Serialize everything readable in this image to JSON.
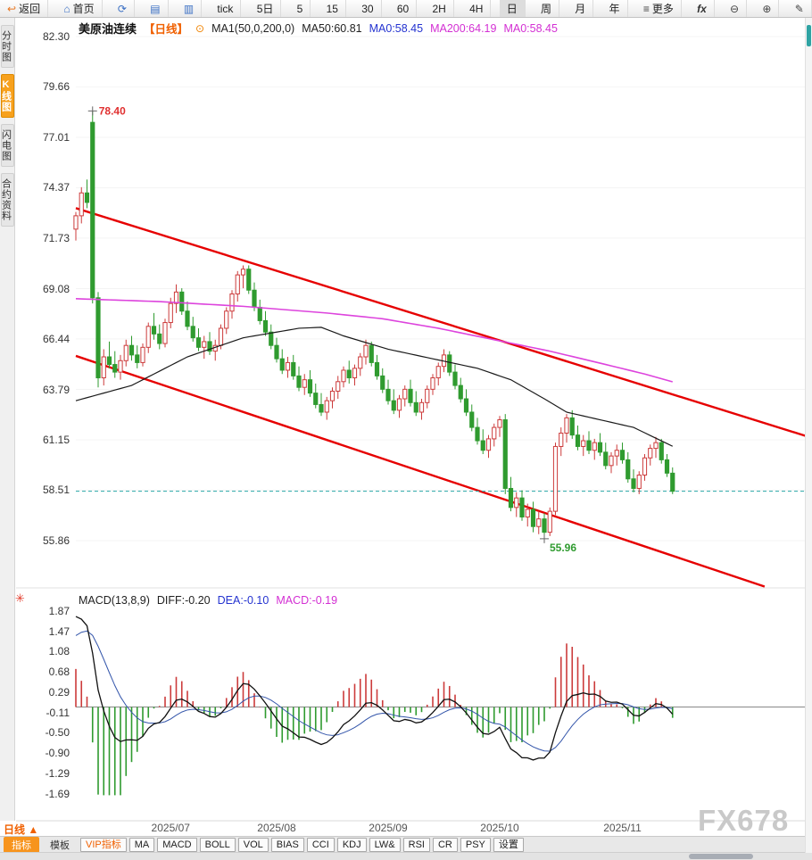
{
  "toolbar": {
    "items": [
      {
        "name": "back",
        "icon": "back-arrow-icon",
        "label": "返回"
      },
      {
        "name": "home",
        "icon": "home-icon",
        "label": "首页"
      },
      {
        "name": "refresh",
        "icon": "refresh-icon",
        "label": ""
      },
      {
        "name": "candle-chart",
        "icon": "candle-chart-icon",
        "label": ""
      },
      {
        "name": "bar-chart",
        "icon": "bar-chart-icon",
        "label": ""
      },
      {
        "name": "tick",
        "label": "tick"
      },
      {
        "name": "5d",
        "label": "5日"
      },
      {
        "name": "5",
        "label": "5"
      },
      {
        "name": "15",
        "label": "15"
      },
      {
        "name": "30",
        "label": "30"
      },
      {
        "name": "60",
        "label": "60"
      },
      {
        "name": "2h",
        "label": "2H"
      },
      {
        "name": "4h",
        "label": "4H"
      },
      {
        "name": "day",
        "label": "日",
        "active": true
      },
      {
        "name": "week",
        "label": "周"
      },
      {
        "name": "month",
        "label": "月"
      },
      {
        "name": "year",
        "label": "年"
      },
      {
        "name": "more",
        "icon": "menu-icon",
        "label": "更多"
      },
      {
        "name": "fx",
        "label": "fx"
      },
      {
        "name": "zoom-out",
        "icon": "zoom-out-icon",
        "label": ""
      },
      {
        "name": "zoom-in",
        "icon": "zoom-in-icon",
        "label": ""
      },
      {
        "name": "draw",
        "icon": "pencil-icon",
        "label": ""
      }
    ]
  },
  "sidebar": {
    "tabs": [
      {
        "label": "分时图",
        "active": false
      },
      {
        "label": "K线图",
        "active": true
      },
      {
        "label": "闪电图",
        "active": false
      },
      {
        "label": "合约资料",
        "active": false
      }
    ]
  },
  "chart_header": {
    "symbol": "美原油连续",
    "period_tag": "【日线】",
    "ma_settings": "MA1(50,0,200,0)",
    "ma50": "MA50:60.81",
    "ma0_primary": "MA0:58.45",
    "ma200": "MA200:64.19",
    "ma0_secondary": "MA0:58.45"
  },
  "macd_header": {
    "title": "MACD(13,8,9)",
    "diff": "DIFF:-0.20",
    "dea": "DEA:-0.10",
    "macd": "MACD:-0.19"
  },
  "bottom_bar": {
    "period_tab": "日线 ▲",
    "tabs": [
      {
        "label": "指标",
        "active": true
      },
      {
        "label": "模板",
        "active": false
      }
    ],
    "buttons": [
      "VIP指标",
      "MA",
      "MACD",
      "BOLL",
      "VOL",
      "BIAS",
      "CCI",
      "KDJ",
      "LW&",
      "RSI",
      "CR",
      "PSY",
      "设置"
    ]
  },
  "watermark": "FX678",
  "chart_data": {
    "type": "candlestick",
    "symbol": "美原油连续",
    "period": "日线",
    "price_axis_ticks": [
      "82.30",
      "79.66",
      "77.01",
      "74.37",
      "71.73",
      "69.08",
      "66.44",
      "63.79",
      "61.15",
      "58.51",
      "55.86"
    ],
    "macd_axis_ticks": [
      "1.87",
      "1.47",
      "1.08",
      "0.68",
      "0.29",
      "-0.11",
      "-0.50",
      "-0.90",
      "-1.29",
      "-1.69"
    ],
    "x_labels": [
      {
        "label": "2025/07",
        "idx": 17
      },
      {
        "label": "2025/08",
        "idx": 36
      },
      {
        "label": "2025/09",
        "idx": 56
      },
      {
        "label": "2025/10",
        "idx": 76
      },
      {
        "label": "2025/11",
        "idx": 98
      }
    ],
    "current_price": 58.45,
    "ma50_value": 60.81,
    "ma200_value": 64.19,
    "macd_values": {
      "diff": -0.2,
      "dea": -0.1,
      "macd": -0.19
    },
    "high_annotation": {
      "text": "78.40",
      "idx": 3,
      "price": 78.4
    },
    "low_annotation": {
      "text": "55.96",
      "idx": 84,
      "price": 55.96
    },
    "trendlines": [
      {
        "i1": 0,
        "p1": 73.3,
        "i2": 132,
        "p2": 61.25
      },
      {
        "i1": 0,
        "p1": 65.55,
        "i2": 123.5,
        "p2": 53.45
      }
    ],
    "ma50_anchors": [
      [
        0,
        63.2
      ],
      [
        10,
        64.0
      ],
      [
        20,
        65.5
      ],
      [
        30,
        66.5
      ],
      [
        40,
        67.0
      ],
      [
        44,
        67.05
      ],
      [
        48,
        66.6
      ],
      [
        56,
        65.9
      ],
      [
        64,
        65.4
      ],
      [
        72,
        64.9
      ],
      [
        78,
        64.3
      ],
      [
        84,
        63.3
      ],
      [
        88,
        62.6
      ],
      [
        94,
        62.2
      ],
      [
        100,
        61.8
      ],
      [
        107,
        60.81
      ]
    ],
    "ma200_anchors": [
      [
        0,
        68.55
      ],
      [
        15,
        68.4
      ],
      [
        30,
        68.15
      ],
      [
        45,
        67.8
      ],
      [
        55,
        67.5
      ],
      [
        65,
        67.0
      ],
      [
        75,
        66.4
      ],
      [
        85,
        65.8
      ],
      [
        95,
        65.1
      ],
      [
        102,
        64.6
      ],
      [
        107,
        64.19
      ]
    ],
    "macd_seed": {
      "ema8": 71.2,
      "ema13": 69.3,
      "dea": 1.3
    },
    "colors": {
      "up": "#cc3b3b",
      "down": "#2f9b2f",
      "trendline": "#e60000",
      "ma50": "#1a1a1a",
      "ma200": "#dd44dd",
      "price_line": "#2aa7a7",
      "diff": "#111111",
      "dea": "#3355aa",
      "hist_pos": "#cc3b3b",
      "hist_neg": "#2f9b2f"
    },
    "candles": [
      [
        72.2,
        73.1,
        71.6,
        72.9
      ],
      [
        72.9,
        74.4,
        72.5,
        74.1
      ],
      [
        74.1,
        74.8,
        73.3,
        73.6
      ],
      [
        77.8,
        78.4,
        68.3,
        68.6
      ],
      [
        68.6,
        68.9,
        63.9,
        64.4
      ],
      [
        64.4,
        65.9,
        64.0,
        65.5
      ],
      [
        65.5,
        66.3,
        64.9,
        65.1
      ],
      [
        65.1,
        65.8,
        64.4,
        64.7
      ],
      [
        64.7,
        65.6,
        64.3,
        65.3
      ],
      [
        65.3,
        66.4,
        65.0,
        66.1
      ],
      [
        66.1,
        66.6,
        65.3,
        65.6
      ],
      [
        65.6,
        66.1,
        64.9,
        65.2
      ],
      [
        65.2,
        66.2,
        65.0,
        66.0
      ],
      [
        66.0,
        67.3,
        65.7,
        67.1
      ],
      [
        67.1,
        67.8,
        66.4,
        66.7
      ],
      [
        66.7,
        67.2,
        65.9,
        66.2
      ],
      [
        66.2,
        67.5,
        66.0,
        67.3
      ],
      [
        67.3,
        68.6,
        67.0,
        68.3
      ],
      [
        68.3,
        69.3,
        67.8,
        68.9
      ],
      [
        68.9,
        69.1,
        67.7,
        67.9
      ],
      [
        67.9,
        68.4,
        66.9,
        67.1
      ],
      [
        67.1,
        67.6,
        66.3,
        66.5
      ],
      [
        66.5,
        67.0,
        65.8,
        66.0
      ],
      [
        66.0,
        66.6,
        65.4,
        66.3
      ],
      [
        66.3,
        66.8,
        65.6,
        65.8
      ],
      [
        65.8,
        66.4,
        65.3,
        66.1
      ],
      [
        66.1,
        67.2,
        65.9,
        67.0
      ],
      [
        67.0,
        68.1,
        66.7,
        67.9
      ],
      [
        67.9,
        69.0,
        67.5,
        68.8
      ],
      [
        68.8,
        70.0,
        68.4,
        69.8
      ],
      [
        69.8,
        70.3,
        69.1,
        70.1
      ],
      [
        70.1,
        70.3,
        68.8,
        69.0
      ],
      [
        69.0,
        69.4,
        67.9,
        68.1
      ],
      [
        68.1,
        68.5,
        67.2,
        67.4
      ],
      [
        67.4,
        67.9,
        66.6,
        66.8
      ],
      [
        66.8,
        67.2,
        65.9,
        66.1
      ],
      [
        66.1,
        66.5,
        65.2,
        65.4
      ],
      [
        65.4,
        65.9,
        64.6,
        64.8
      ],
      [
        64.8,
        65.5,
        64.4,
        65.2
      ],
      [
        65.2,
        65.6,
        64.3,
        64.5
      ],
      [
        64.5,
        65.0,
        63.7,
        63.9
      ],
      [
        63.9,
        64.6,
        63.5,
        64.3
      ],
      [
        64.3,
        64.8,
        63.4,
        63.6
      ],
      [
        63.6,
        64.1,
        62.8,
        63.0
      ],
      [
        63.0,
        63.6,
        62.4,
        62.6
      ],
      [
        62.6,
        63.4,
        62.2,
        63.2
      ],
      [
        63.2,
        63.9,
        62.8,
        63.7
      ],
      [
        63.7,
        64.5,
        63.3,
        64.2
      ],
      [
        64.2,
        65.0,
        63.9,
        64.8
      ],
      [
        64.8,
        65.3,
        64.1,
        64.4
      ],
      [
        64.4,
        65.1,
        64.0,
        64.9
      ],
      [
        64.9,
        65.7,
        64.5,
        65.5
      ],
      [
        65.5,
        66.4,
        65.1,
        66.1
      ],
      [
        66.1,
        66.3,
        65.0,
        65.2
      ],
      [
        65.2,
        65.6,
        64.3,
        64.5
      ],
      [
        64.5,
        64.9,
        63.6,
        63.8
      ],
      [
        63.8,
        64.3,
        63.0,
        63.2
      ],
      [
        63.2,
        63.8,
        62.5,
        62.7
      ],
      [
        62.7,
        63.5,
        62.3,
        63.3
      ],
      [
        63.3,
        64.0,
        62.9,
        63.8
      ],
      [
        63.8,
        64.3,
        62.9,
        63.1
      ],
      [
        63.1,
        63.7,
        62.4,
        62.6
      ],
      [
        62.6,
        63.3,
        62.2,
        63.1
      ],
      [
        63.1,
        64.0,
        62.8,
        63.8
      ],
      [
        63.8,
        64.6,
        63.5,
        64.4
      ],
      [
        64.4,
        65.2,
        64.0,
        65.0
      ],
      [
        65.0,
        65.9,
        64.7,
        65.6
      ],
      [
        65.6,
        65.8,
        64.5,
        64.7
      ],
      [
        64.7,
        65.1,
        63.8,
        64.0
      ],
      [
        64.0,
        64.4,
        63.1,
        63.3
      ],
      [
        63.3,
        63.8,
        62.4,
        62.6
      ],
      [
        62.6,
        63.0,
        61.6,
        61.8
      ],
      [
        61.8,
        62.3,
        60.9,
        61.1
      ],
      [
        61.1,
        61.7,
        60.4,
        60.6
      ],
      [
        60.6,
        61.4,
        60.2,
        61.2
      ],
      [
        61.2,
        62.0,
        60.8,
        61.8
      ],
      [
        61.8,
        62.4,
        61.3,
        62.2
      ],
      [
        62.2,
        62.5,
        58.3,
        58.6
      ],
      [
        58.6,
        59.2,
        57.4,
        57.6
      ],
      [
        57.6,
        58.4,
        57.1,
        58.1
      ],
      [
        58.1,
        58.5,
        56.9,
        57.1
      ],
      [
        57.1,
        57.8,
        56.6,
        57.5
      ],
      [
        57.5,
        57.9,
        56.3,
        56.6
      ],
      [
        56.6,
        57.4,
        56.2,
        57.0
      ],
      [
        57.0,
        57.3,
        55.96,
        56.3
      ],
      [
        56.3,
        57.6,
        56.1,
        57.4
      ],
      [
        57.4,
        61.0,
        57.2,
        60.8
      ],
      [
        60.8,
        61.8,
        60.3,
        61.5
      ],
      [
        61.5,
        62.5,
        61.0,
        62.3
      ],
      [
        62.3,
        62.7,
        61.2,
        61.4
      ],
      [
        61.4,
        61.9,
        60.6,
        60.8
      ],
      [
        60.8,
        61.4,
        60.3,
        61.1
      ],
      [
        61.1,
        61.6,
        60.4,
        60.6
      ],
      [
        60.6,
        61.2,
        60.1,
        61.0
      ],
      [
        61.0,
        61.5,
        60.3,
        60.5
      ],
      [
        60.5,
        61.0,
        59.6,
        59.8
      ],
      [
        59.8,
        60.5,
        59.4,
        60.3
      ],
      [
        60.3,
        60.9,
        59.8,
        60.6
      ],
      [
        60.6,
        61.0,
        59.9,
        60.1
      ],
      [
        60.1,
        60.5,
        58.9,
        59.1
      ],
      [
        59.1,
        59.6,
        58.4,
        58.6
      ],
      [
        58.6,
        59.5,
        58.3,
        59.3
      ],
      [
        59.3,
        60.4,
        59.0,
        60.2
      ],
      [
        60.2,
        60.9,
        59.8,
        60.7
      ],
      [
        60.7,
        61.3,
        60.2,
        61.0
      ],
      [
        61.0,
        61.2,
        59.9,
        60.1
      ],
      [
        60.1,
        60.4,
        59.2,
        59.4
      ],
      [
        59.4,
        59.7,
        58.3,
        58.45
      ]
    ]
  }
}
